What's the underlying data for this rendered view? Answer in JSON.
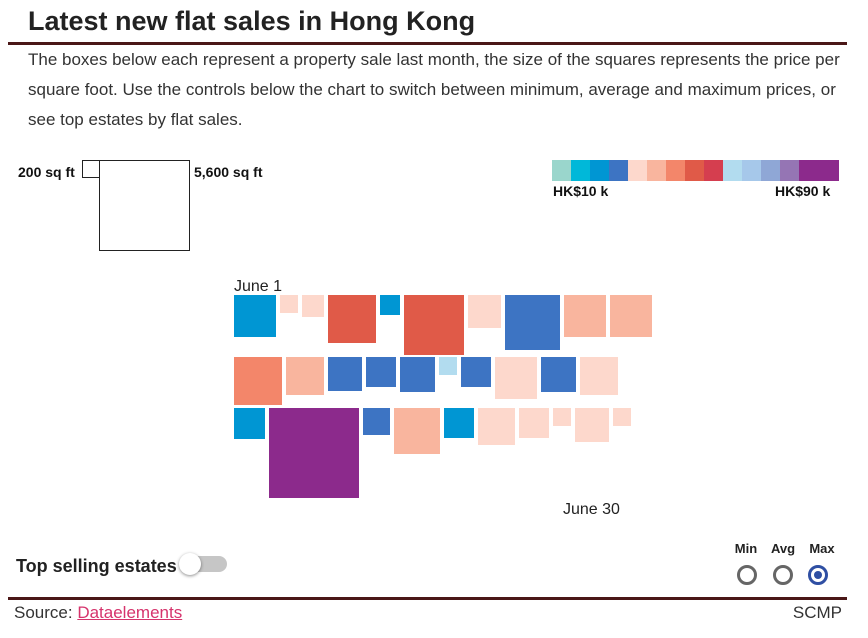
{
  "header": {
    "title": "Latest new flat sales in Hong Kong",
    "description": "The boxes below each represent a property sale last month, the size of the squares represents the price per square foot. Use the controls below the chart to switch between minimum, average and maximum prices, or see top estates by flat sales."
  },
  "size_legend": {
    "small_label": "200 sq ft",
    "large_label": "5,600 sq ft"
  },
  "color_scale": {
    "min_label": "HK$10 k",
    "max_label": "HK$90 k",
    "colors": [
      "#9ad6cc",
      "#00b8d9",
      "#0096d3",
      "#3d74c3",
      "#fdd8cc",
      "#f9b59e",
      "#f3866a",
      "#e05a48",
      "#d53e4f",
      "#b2dcef",
      "#a6c8ea",
      "#8fa7d6",
      "#9575b4",
      "#8c2a8c",
      "#8c2a8c"
    ]
  },
  "chart_data": {
    "type": "square_grid",
    "encoding": "Each square is one property sale; square size = price per square foot; colour = price band",
    "start_label": "June 1",
    "end_label": "June 30",
    "rows": [
      [
        {
          "color": "#0096d3",
          "size": 42
        },
        {
          "color": "#fdd8cc",
          "size": 18
        },
        {
          "color": "#fdd8cc",
          "size": 22
        },
        {
          "color": "#e05a48",
          "size": 48
        },
        {
          "color": "#0096d3",
          "size": 20
        },
        {
          "color": "#e05a48",
          "size": 60
        },
        {
          "color": "#fdd8cc",
          "size": 33
        },
        {
          "color": "#3d74c3",
          "size": 55
        },
        {
          "color": "#f9b59e",
          "size": 42
        },
        {
          "color": "#f9b59e",
          "size": 42
        }
      ],
      [
        {
          "color": "#f3866a",
          "size": 48
        },
        {
          "color": "#f9b59e",
          "size": 38
        },
        {
          "color": "#3d74c3",
          "size": 34
        },
        {
          "color": "#3d74c3",
          "size": 30
        },
        {
          "color": "#3d74c3",
          "size": 35
        },
        {
          "color": "#b2dcef",
          "size": 18
        },
        {
          "color": "#3d74c3",
          "size": 30
        },
        {
          "color": "#fdd8cc",
          "size": 42
        },
        {
          "color": "#3d74c3",
          "size": 35
        },
        {
          "color": "#fdd8cc",
          "size": 38
        }
      ],
      [
        {
          "color": "#0096d3",
          "size": 31
        },
        {
          "color": "#8c2a8c",
          "size": 90
        },
        {
          "color": "#3d74c3",
          "size": 27
        },
        {
          "color": "#f9b59e",
          "size": 46
        },
        {
          "color": "#0096d3",
          "size": 30
        },
        {
          "color": "#fdd8cc",
          "size": 37
        },
        {
          "color": "#fdd8cc",
          "size": 30
        },
        {
          "color": "#fdd8cc",
          "size": 18
        },
        {
          "color": "#fdd8cc",
          "size": 34
        },
        {
          "color": "#fdd8cc",
          "size": 18
        }
      ]
    ]
  },
  "controls": {
    "toggle_label": "Top selling estates",
    "toggle_on": false,
    "options": [
      "Min",
      "Avg",
      "Max"
    ],
    "selected": "Max"
  },
  "footer": {
    "source_prefix": "Source: ",
    "source_link": "Dataelements",
    "brand": "SCMP"
  }
}
